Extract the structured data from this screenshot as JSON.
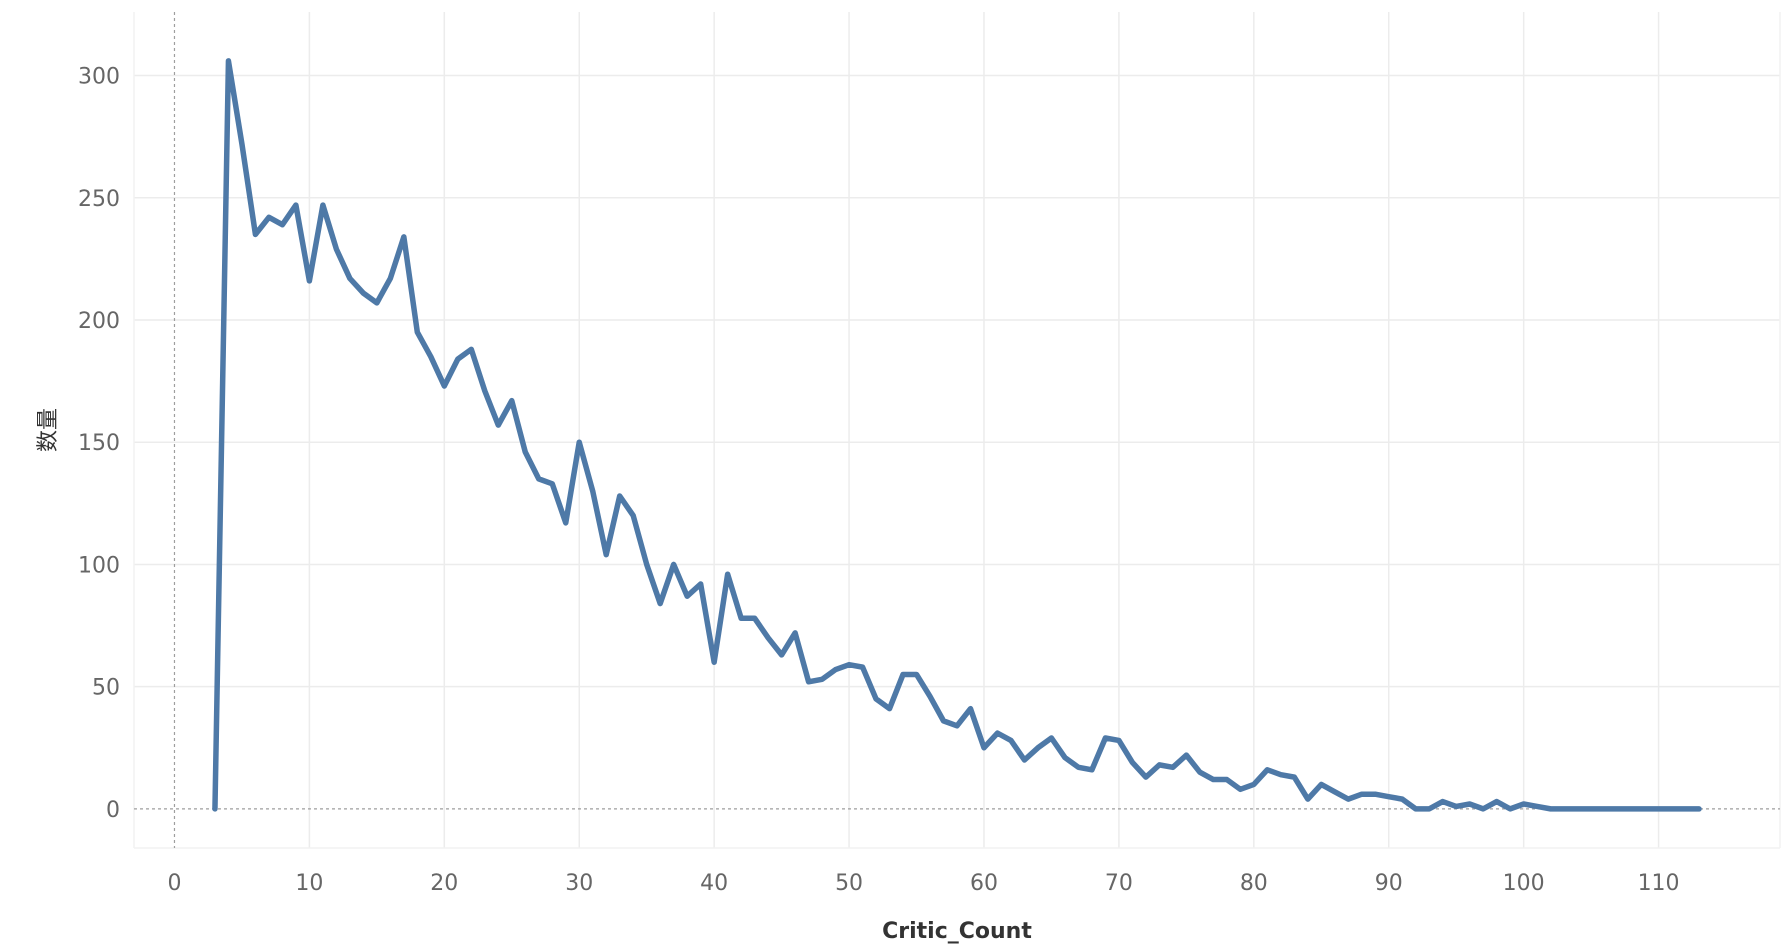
{
  "chart_data": {
    "type": "line",
    "title": "",
    "xlabel": "Critic_Count",
    "ylabel": "数量",
    "xlim": [
      -3,
      119
    ],
    "ylim": [
      -16,
      326
    ],
    "x_ticks": [
      0,
      10,
      20,
      30,
      40,
      50,
      60,
      70,
      80,
      90,
      100,
      110
    ],
    "y_ticks": [
      0,
      50,
      100,
      150,
      200,
      250,
      300
    ],
    "grid": true,
    "legend": "none",
    "series": [
      {
        "color": "#4e79a7",
        "x": [
          3,
          4,
          5,
          6,
          7,
          8,
          9,
          10,
          11,
          12,
          13,
          14,
          15,
          16,
          17,
          18,
          19,
          20,
          21,
          22,
          23,
          24,
          25,
          26,
          27,
          28,
          29,
          30,
          31,
          32,
          33,
          34,
          35,
          36,
          37,
          38,
          39,
          40,
          41,
          42,
          43,
          44,
          45,
          46,
          47,
          48,
          49,
          50,
          51,
          52,
          53,
          54,
          55,
          56,
          57,
          58,
          59,
          60,
          61,
          62,
          63,
          64,
          65,
          66,
          67,
          68,
          69,
          70,
          71,
          72,
          73,
          74,
          75,
          76,
          77,
          78,
          79,
          80,
          81,
          82,
          83,
          84,
          85,
          86,
          87,
          88,
          89,
          90,
          91,
          92,
          93,
          94,
          95,
          96,
          97,
          98,
          99,
          100,
          101,
          102,
          103,
          104,
          105,
          106,
          107,
          108,
          109,
          110,
          111,
          112,
          113
        ],
        "y": [
          0,
          306,
          272,
          235,
          242,
          239,
          247,
          216,
          247,
          229,
          217,
          211,
          207,
          217,
          234,
          195,
          185,
          173,
          184,
          188,
          171,
          157,
          167,
          146,
          135,
          133,
          117,
          150,
          130,
          104,
          128,
          120,
          100,
          84,
          100,
          87,
          92,
          60,
          96,
          78,
          78,
          70,
          63,
          72,
          52,
          53,
          57,
          59,
          58,
          45,
          41,
          55,
          55,
          46,
          36,
          34,
          41,
          25,
          31,
          28,
          20,
          25,
          29,
          21,
          17,
          16,
          29,
          28,
          19,
          13,
          18,
          17,
          22,
          15,
          12,
          12,
          8,
          10,
          16,
          14,
          13,
          4,
          10,
          7,
          4,
          6,
          6,
          5,
          4,
          0,
          0,
          3,
          1,
          2,
          0,
          3,
          0,
          2,
          1,
          0,
          0,
          0,
          0,
          0,
          0,
          0,
          0,
          0,
          0,
          0,
          0
        ]
      }
    ]
  }
}
